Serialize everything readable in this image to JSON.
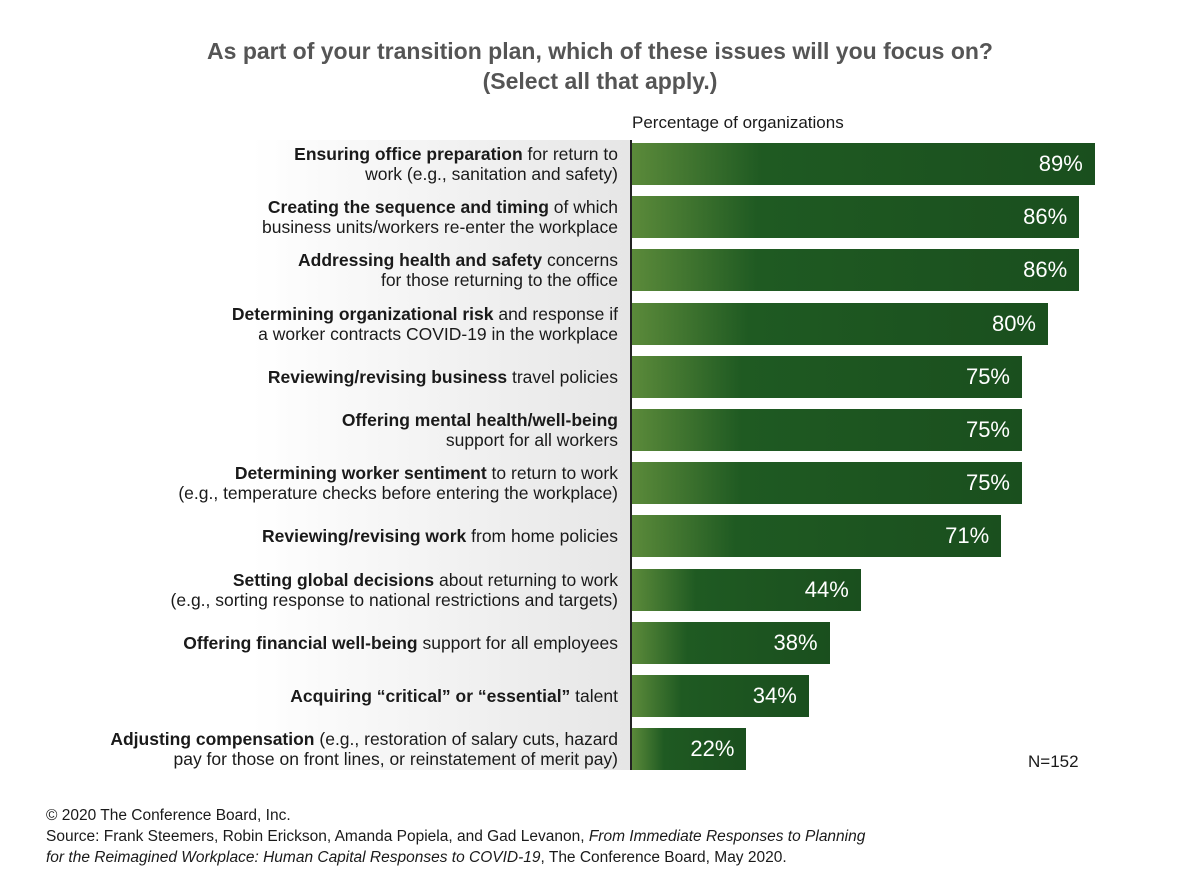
{
  "title": {
    "line1": "As part of your transition plan, which of these issues will you focus on?",
    "line2": "(Select all that apply.)"
  },
  "axis_label": "Percentage of organizations",
  "sample_size": "N=152",
  "footer": {
    "copyright": "© 2020 The Conference Board, Inc.",
    "source_prefix": "Source: Frank Steemers, Robin Erickson, Amanda Popiela, and Gad Levanon, ",
    "source_title_1": "From Immediate Responses to Planning",
    "source_title_2": "for the Reimagined Workplace: Human Capital Responses to COVID-19",
    "source_suffix": ", The Conference Board, May 2020."
  },
  "colors": {
    "bar_dark": "#1a4f1e",
    "bar_light": "#5b8a3a",
    "title": "#555555"
  },
  "chart_data": {
    "type": "bar",
    "orientation": "horizontal",
    "xlim": [
      0,
      100
    ],
    "categories": [
      {
        "bold": "Ensuring office preparation",
        "rest": " for return to",
        "line2": "work (e.g., sanitation and safety)"
      },
      {
        "bold": "Creating the sequence and timing",
        "rest": " of which",
        "line2": "business units/workers re-enter the workplace"
      },
      {
        "bold": "Addressing health and safety",
        "rest": " concerns",
        "line2": "for those returning to the office"
      },
      {
        "bold": "Determining organizational risk",
        "rest": " and response if",
        "line2": "a worker contracts COVID-19 in the workplace"
      },
      {
        "bold": "Reviewing/revising business",
        "rest": " travel policies",
        "line2": ""
      },
      {
        "bold": "Offering mental health/well-being",
        "rest": "",
        "line2": "support for all workers"
      },
      {
        "bold": "Determining worker sentiment",
        "rest": " to return to work",
        "line2": "(e.g., temperature checks before entering the workplace)"
      },
      {
        "bold": "Reviewing/revising work",
        "rest": " from home policies",
        "line2": ""
      },
      {
        "bold": "Setting global decisions",
        "rest": " about returning to work",
        "line2": "(e.g., sorting response to national restrictions and targets)"
      },
      {
        "bold": "Offering financial well-being",
        "rest": " support for all employees",
        "line2": ""
      },
      {
        "bold": "Acquiring “critical” or “essential”",
        "rest": " talent",
        "line2": ""
      },
      {
        "bold": "Adjusting compensation",
        "rest": " (e.g., restoration of salary cuts, hazard",
        "line2": "pay for those on front lines, or reinstatement of merit pay)"
      }
    ],
    "values": [
      89,
      86,
      86,
      80,
      75,
      75,
      75,
      71,
      44,
      38,
      34,
      22
    ],
    "value_labels": [
      "89%",
      "86%",
      "86%",
      "80%",
      "75%",
      "75%",
      "75%",
      "71%",
      "44%",
      "38%",
      "34%",
      "22%"
    ]
  }
}
